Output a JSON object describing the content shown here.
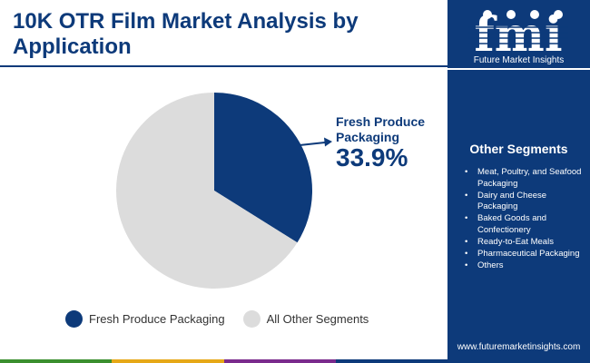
{
  "title": "10K OTR Film Market Analysis by Application",
  "chart_data": {
    "type": "pie",
    "title": "10K OTR Film Market Analysis by Application",
    "slices": [
      {
        "label": "Fresh Produce Packaging",
        "value": 33.9,
        "color": "#0d3a7a"
      },
      {
        "label": "All Other Segments",
        "value": 66.1,
        "color": "#dcdcdc"
      }
    ],
    "callout": {
      "label": "Fresh Produce Packaging",
      "value_text": "33.9%"
    },
    "legend_position": "bottom"
  },
  "sidebar": {
    "logo_text": "fmi",
    "logo_tagline": "Future Market Insights",
    "heading": "Other Segments",
    "bullet": "•",
    "segments": [
      "Meat, Poultry, and Seafood Packaging",
      "Dairy and Cheese Packaging",
      "Baked Goods and Confectionery",
      "Ready-to-Eat Meals",
      "Pharmaceutical Packaging",
      "Others"
    ],
    "url": "www.futuremarketinsights.com"
  },
  "colors": {
    "brand": "#0d3a7a",
    "other": "#dcdcdc",
    "strip": [
      "#3b8f2e",
      "#e6a817",
      "#7a2a8c",
      "#0d3a7a"
    ]
  }
}
